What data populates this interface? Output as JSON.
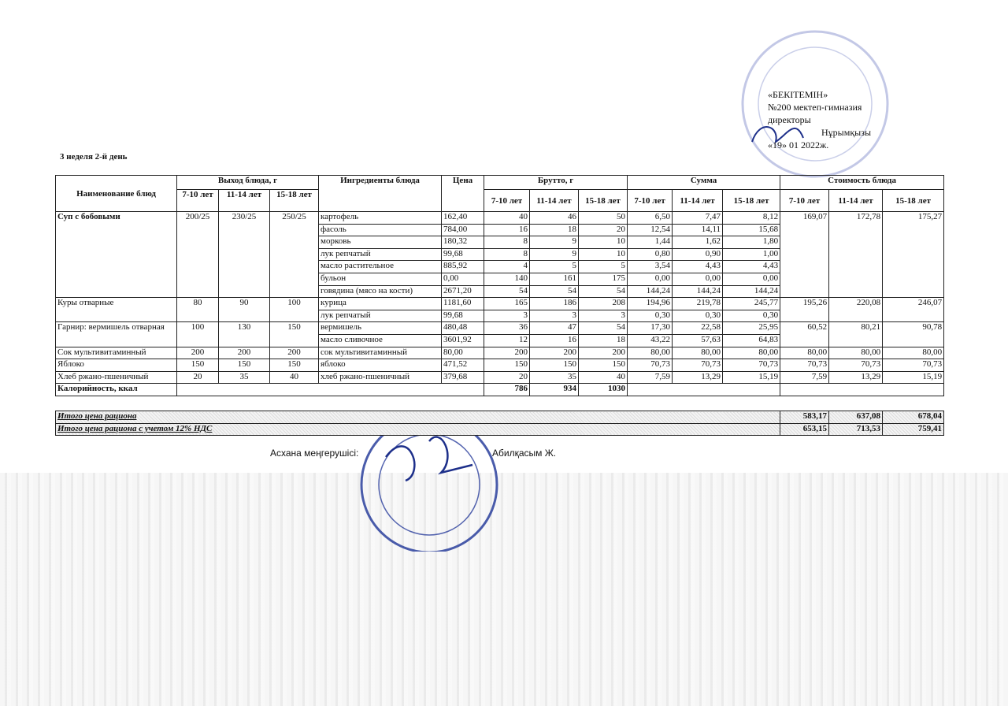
{
  "approval": {
    "title": "«БЕКІТЕМІН»",
    "school": "№200 мектеп-гимназия",
    "position": "директоры",
    "name": "Нұрымқызы",
    "date": "«19» 01 2022ж."
  },
  "title": "3 неделя 2-й день",
  "table": {
    "headers": {
      "name": "Наименование блюд",
      "output": "Выход блюда, г",
      "ingredients": "Ингредиенты блюда",
      "price": "Цена",
      "brutto": "Брутто, г",
      "sum": "Сумма",
      "cost": "Стоимость блюда"
    },
    "ages": [
      "7-10 лет",
      "11-14 лет",
      "15-18 лет"
    ],
    "dishes": [
      {
        "name": "Суп с бобовыми",
        "output": [
          "200/25",
          "230/25",
          "250/25"
        ],
        "cost": [
          "169,07",
          "172,78",
          "175,27"
        ],
        "items": [
          {
            "name": "картофель",
            "price": "162,40",
            "brutto": [
              "40",
              "46",
              "50"
            ],
            "sum": [
              "6,50",
              "7,47",
              "8,12"
            ]
          },
          {
            "name": "фасоль",
            "price": "784,00",
            "brutto": [
              "16",
              "18",
              "20"
            ],
            "sum": [
              "12,54",
              "14,11",
              "15,68"
            ]
          },
          {
            "name": "морковь",
            "price": "180,32",
            "brutto": [
              "8",
              "9",
              "10"
            ],
            "sum": [
              "1,44",
              "1,62",
              "1,80"
            ]
          },
          {
            "name": "лук репчатый",
            "price": "99,68",
            "brutto": [
              "8",
              "9",
              "10"
            ],
            "sum": [
              "0,80",
              "0,90",
              "1,00"
            ]
          },
          {
            "name": "масло растительное",
            "price": "885,92",
            "brutto": [
              "4",
              "5",
              "5"
            ],
            "sum": [
              "3,54",
              "4,43",
              "4,43"
            ]
          },
          {
            "name": "бульон",
            "price": "0,00",
            "brutto": [
              "140",
              "161",
              "175"
            ],
            "sum": [
              "0,00",
              "0,00",
              "0,00"
            ]
          },
          {
            "name": "говядина (мясо на кости)",
            "price": "2671,20",
            "brutto": [
              "54",
              "54",
              "54"
            ],
            "sum": [
              "144,24",
              "144,24",
              "144,24"
            ]
          }
        ]
      },
      {
        "name": "Куры отварные",
        "output": [
          "80",
          "90",
          "100"
        ],
        "cost": [
          "195,26",
          "220,08",
          "246,07"
        ],
        "items": [
          {
            "name": "курица",
            "price": "1181,60",
            "brutto": [
              "165",
              "186",
              "208"
            ],
            "sum": [
              "194,96",
              "219,78",
              "245,77"
            ]
          },
          {
            "name": "лук репчатый",
            "price": "99,68",
            "brutto": [
              "3",
              "3",
              "3"
            ],
            "sum": [
              "0,30",
              "0,30",
              "0,30"
            ]
          }
        ]
      },
      {
        "name": "Гарнир: вермишель отварная",
        "output": [
          "100",
          "130",
          "150"
        ],
        "cost": [
          "60,52",
          "80,21",
          "90,78"
        ],
        "items": [
          {
            "name": "вермишель",
            "price": "480,48",
            "brutto": [
              "36",
              "47",
              "54"
            ],
            "sum": [
              "17,30",
              "22,58",
              "25,95"
            ]
          },
          {
            "name": "масло сливочное",
            "price": "3601,92",
            "brutto": [
              "12",
              "16",
              "18"
            ],
            "sum": [
              "43,22",
              "57,63",
              "64,83"
            ]
          }
        ]
      },
      {
        "name": "Сок мультивитаминный",
        "output": [
          "200",
          "200",
          "200"
        ],
        "cost": [
          "80,00",
          "80,00",
          "80,00"
        ],
        "items": [
          {
            "name": "сок мультивитаминный",
            "price": "80,00",
            "brutto": [
              "200",
              "200",
              "200"
            ],
            "sum": [
              "80,00",
              "80,00",
              "80,00"
            ]
          }
        ]
      },
      {
        "name": "Яблоко",
        "output": [
          "150",
          "150",
          "150"
        ],
        "cost": [
          "70,73",
          "70,73",
          "70,73"
        ],
        "items": [
          {
            "name": "яблоко",
            "price": "471,52",
            "brutto": [
              "150",
              "150",
              "150"
            ],
            "sum": [
              "70,73",
              "70,73",
              "70,73"
            ]
          }
        ]
      },
      {
        "name": "Хлеб ржано-пшеничный",
        "output": [
          "20",
          "35",
          "40"
        ],
        "cost": [
          "7,59",
          "13,29",
          "15,19"
        ],
        "items": [
          {
            "name": "хлеб ржано-пшеничный",
            "price": "379,68",
            "brutto": [
              "20",
              "35",
              "40"
            ],
            "sum": [
              "7,59",
              "13,29",
              "15,19"
            ]
          }
        ]
      }
    ],
    "calories": {
      "label": "Калорийность, ккал",
      "values": [
        "786",
        "934",
        "1030"
      ]
    }
  },
  "totals": [
    {
      "label": "Итого цена рациона",
      "values": [
        "583,17",
        "637,08",
        "678,04"
      ]
    },
    {
      "label": "Итого цена рациона с учетом 12% НДС",
      "values": [
        "653,15",
        "713,53",
        "759,41"
      ]
    }
  ],
  "signature": {
    "role": "Асхана меңгерушісі:",
    "name": "Абилқасым Ж."
  }
}
